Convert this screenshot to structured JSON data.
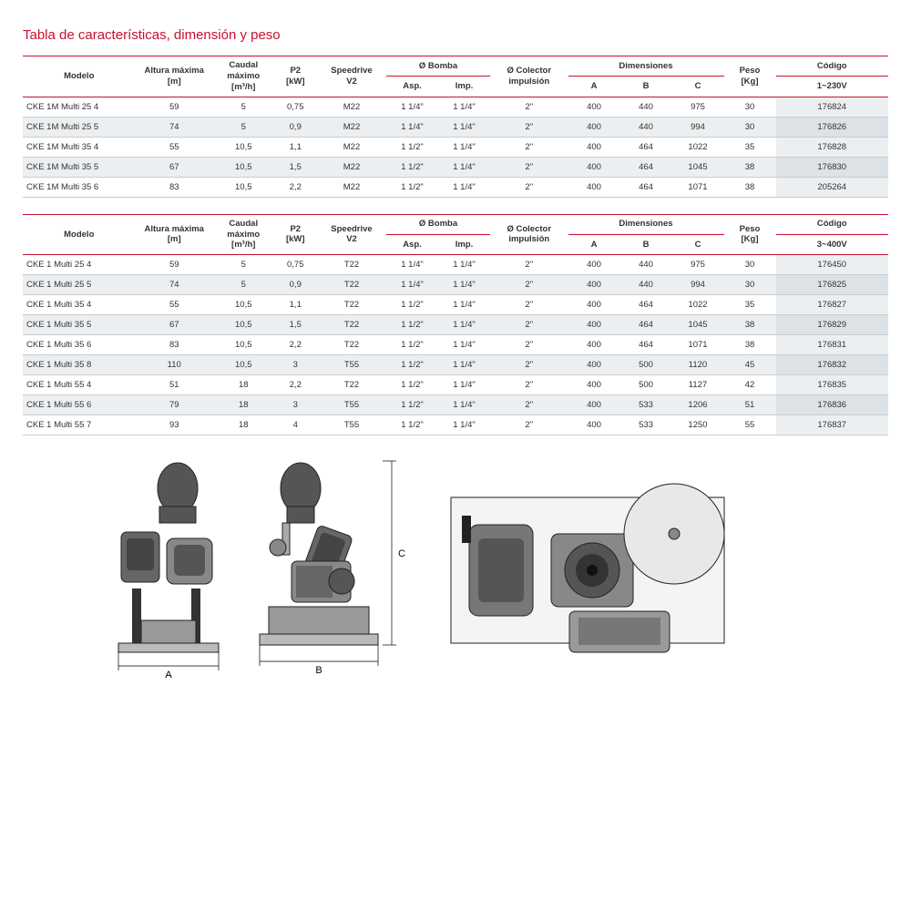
{
  "title": "Tabla de características, dimensión y peso",
  "headers": {
    "modelo": "Modelo",
    "altura": "Altura máxima\n[m]",
    "caudal": "Caudal\nmáximo\n[m³/h]",
    "p2": "P2\n[kW]",
    "speedrive": "Speedrive\nV2",
    "bomba": "Ø  Bomba",
    "asp": "Asp.",
    "imp": "Imp.",
    "colector": "Ø Colector\nimpulsión",
    "dimensiones": "Dimensiones",
    "a": "A",
    "b": "B",
    "c": "C",
    "peso": "Peso\n[Kg]",
    "codigo": "Código",
    "v1": "1~230V",
    "v3": "3~400V"
  },
  "table1": [
    {
      "model": "CKE 1M Multi 25 4",
      "altura": "59",
      "caudal": "5",
      "p2": "0,75",
      "spd": "M22",
      "asp": "1 1/4\"",
      "imp": "1 1/4\"",
      "col": "2\"",
      "a": "400",
      "b": "440",
      "c": "975",
      "peso": "30",
      "code": "176824"
    },
    {
      "model": "CKE 1M Multi 25 5",
      "altura": "74",
      "caudal": "5",
      "p2": "0,9",
      "spd": "M22",
      "asp": "1 1/4\"",
      "imp": "1 1/4\"",
      "col": "2\"",
      "a": "400",
      "b": "440",
      "c": "994",
      "peso": "30",
      "code": "176826"
    },
    {
      "model": "CKE 1M Multi 35 4",
      "altura": "55",
      "caudal": "10,5",
      "p2": "1,1",
      "spd": "M22",
      "asp": "1 1/2\"",
      "imp": "1 1/4\"",
      "col": "2\"",
      "a": "400",
      "b": "464",
      "c": "1022",
      "peso": "35",
      "code": "176828"
    },
    {
      "model": "CKE 1M Multi 35 5",
      "altura": "67",
      "caudal": "10,5",
      "p2": "1,5",
      "spd": "M22",
      "asp": "1 1/2\"",
      "imp": "1 1/4\"",
      "col": "2\"",
      "a": "400",
      "b": "464",
      "c": "1045",
      "peso": "38",
      "code": "176830"
    },
    {
      "model": "CKE 1M Multi 35 6",
      "altura": "83",
      "caudal": "10,5",
      "p2": "2,2",
      "spd": "M22",
      "asp": "1 1/2\"",
      "imp": "1 1/4\"",
      "col": "2\"",
      "a": "400",
      "b": "464",
      "c": "1071",
      "peso": "38",
      "code": "205264"
    }
  ],
  "table2": [
    {
      "model": "CKE 1 Multi 25 4",
      "altura": "59",
      "caudal": "5",
      "p2": "0,75",
      "spd": "T22",
      "asp": "1 1/4\"",
      "imp": "1 1/4\"",
      "col": "2\"",
      "a": "400",
      "b": "440",
      "c": "975",
      "peso": "30",
      "code": "176450"
    },
    {
      "model": "CKE 1 Multi 25 5",
      "altura": "74",
      "caudal": "5",
      "p2": "0,9",
      "spd": "T22",
      "asp": "1 1/4\"",
      "imp": "1 1/4\"",
      "col": "2\"",
      "a": "400",
      "b": "440",
      "c": "994",
      "peso": "30",
      "code": "176825"
    },
    {
      "model": "CKE 1 Multi 35 4",
      "altura": "55",
      "caudal": "10,5",
      "p2": "1,1",
      "spd": "T22",
      "asp": "1 1/2\"",
      "imp": "1 1/4\"",
      "col": "2\"",
      "a": "400",
      "b": "464",
      "c": "1022",
      "peso": "35",
      "code": "176827"
    },
    {
      "model": "CKE 1 Multi 35 5",
      "altura": "67",
      "caudal": "10,5",
      "p2": "1,5",
      "spd": "T22",
      "asp": "1 1/2\"",
      "imp": "1 1/4\"",
      "col": "2\"",
      "a": "400",
      "b": "464",
      "c": "1045",
      "peso": "38",
      "code": "176829"
    },
    {
      "model": "CKE 1 Multi 35 6",
      "altura": "83",
      "caudal": "10,5",
      "p2": "2,2",
      "spd": "T22",
      "asp": "1 1/2\"",
      "imp": "1 1/4\"",
      "col": "2\"",
      "a": "400",
      "b": "464",
      "c": "1071",
      "peso": "38",
      "code": "176831"
    },
    {
      "model": "CKE 1 Multi 35 8",
      "altura": "110",
      "caudal": "10,5",
      "p2": "3",
      "spd": "T55",
      "asp": "1 1/2\"",
      "imp": "1 1/4\"",
      "col": "2\"",
      "a": "400",
      "b": "500",
      "c": "1120",
      "peso": "45",
      "code": "176832"
    },
    {
      "model": "CKE 1 Multi 55 4",
      "altura": "51",
      "caudal": "18",
      "p2": "2,2",
      "spd": "T22",
      "asp": "1 1/2\"",
      "imp": "1 1/4\"",
      "col": "2\"",
      "a": "400",
      "b": "500",
      "c": "1127",
      "peso": "42",
      "code": "176835"
    },
    {
      "model": "CKE 1 Multi 55 6",
      "altura": "79",
      "caudal": "18",
      "p2": "3",
      "spd": "T55",
      "asp": "1 1/2\"",
      "imp": "1 1/4\"",
      "col": "2\"",
      "a": "400",
      "b": "533",
      "c": "1206",
      "peso": "51",
      "code": "176836"
    },
    {
      "model": "CKE 1 Multi 55 7",
      "altura": "93",
      "caudal": "18",
      "p2": "4",
      "spd": "T55",
      "asp": "1 1/2\"",
      "imp": "1 1/4\"",
      "col": "2\"",
      "a": "400",
      "b": "533",
      "c": "1250",
      "peso": "55",
      "code": "176837"
    }
  ],
  "colwidths": [
    "13%",
    "9%",
    "7%",
    "5%",
    "8%",
    "6%",
    "6%",
    "9%",
    "6%",
    "6%",
    "6%",
    "6%",
    "13%"
  ],
  "diagram_labels": {
    "a": "A",
    "b": "B",
    "c": "C"
  }
}
